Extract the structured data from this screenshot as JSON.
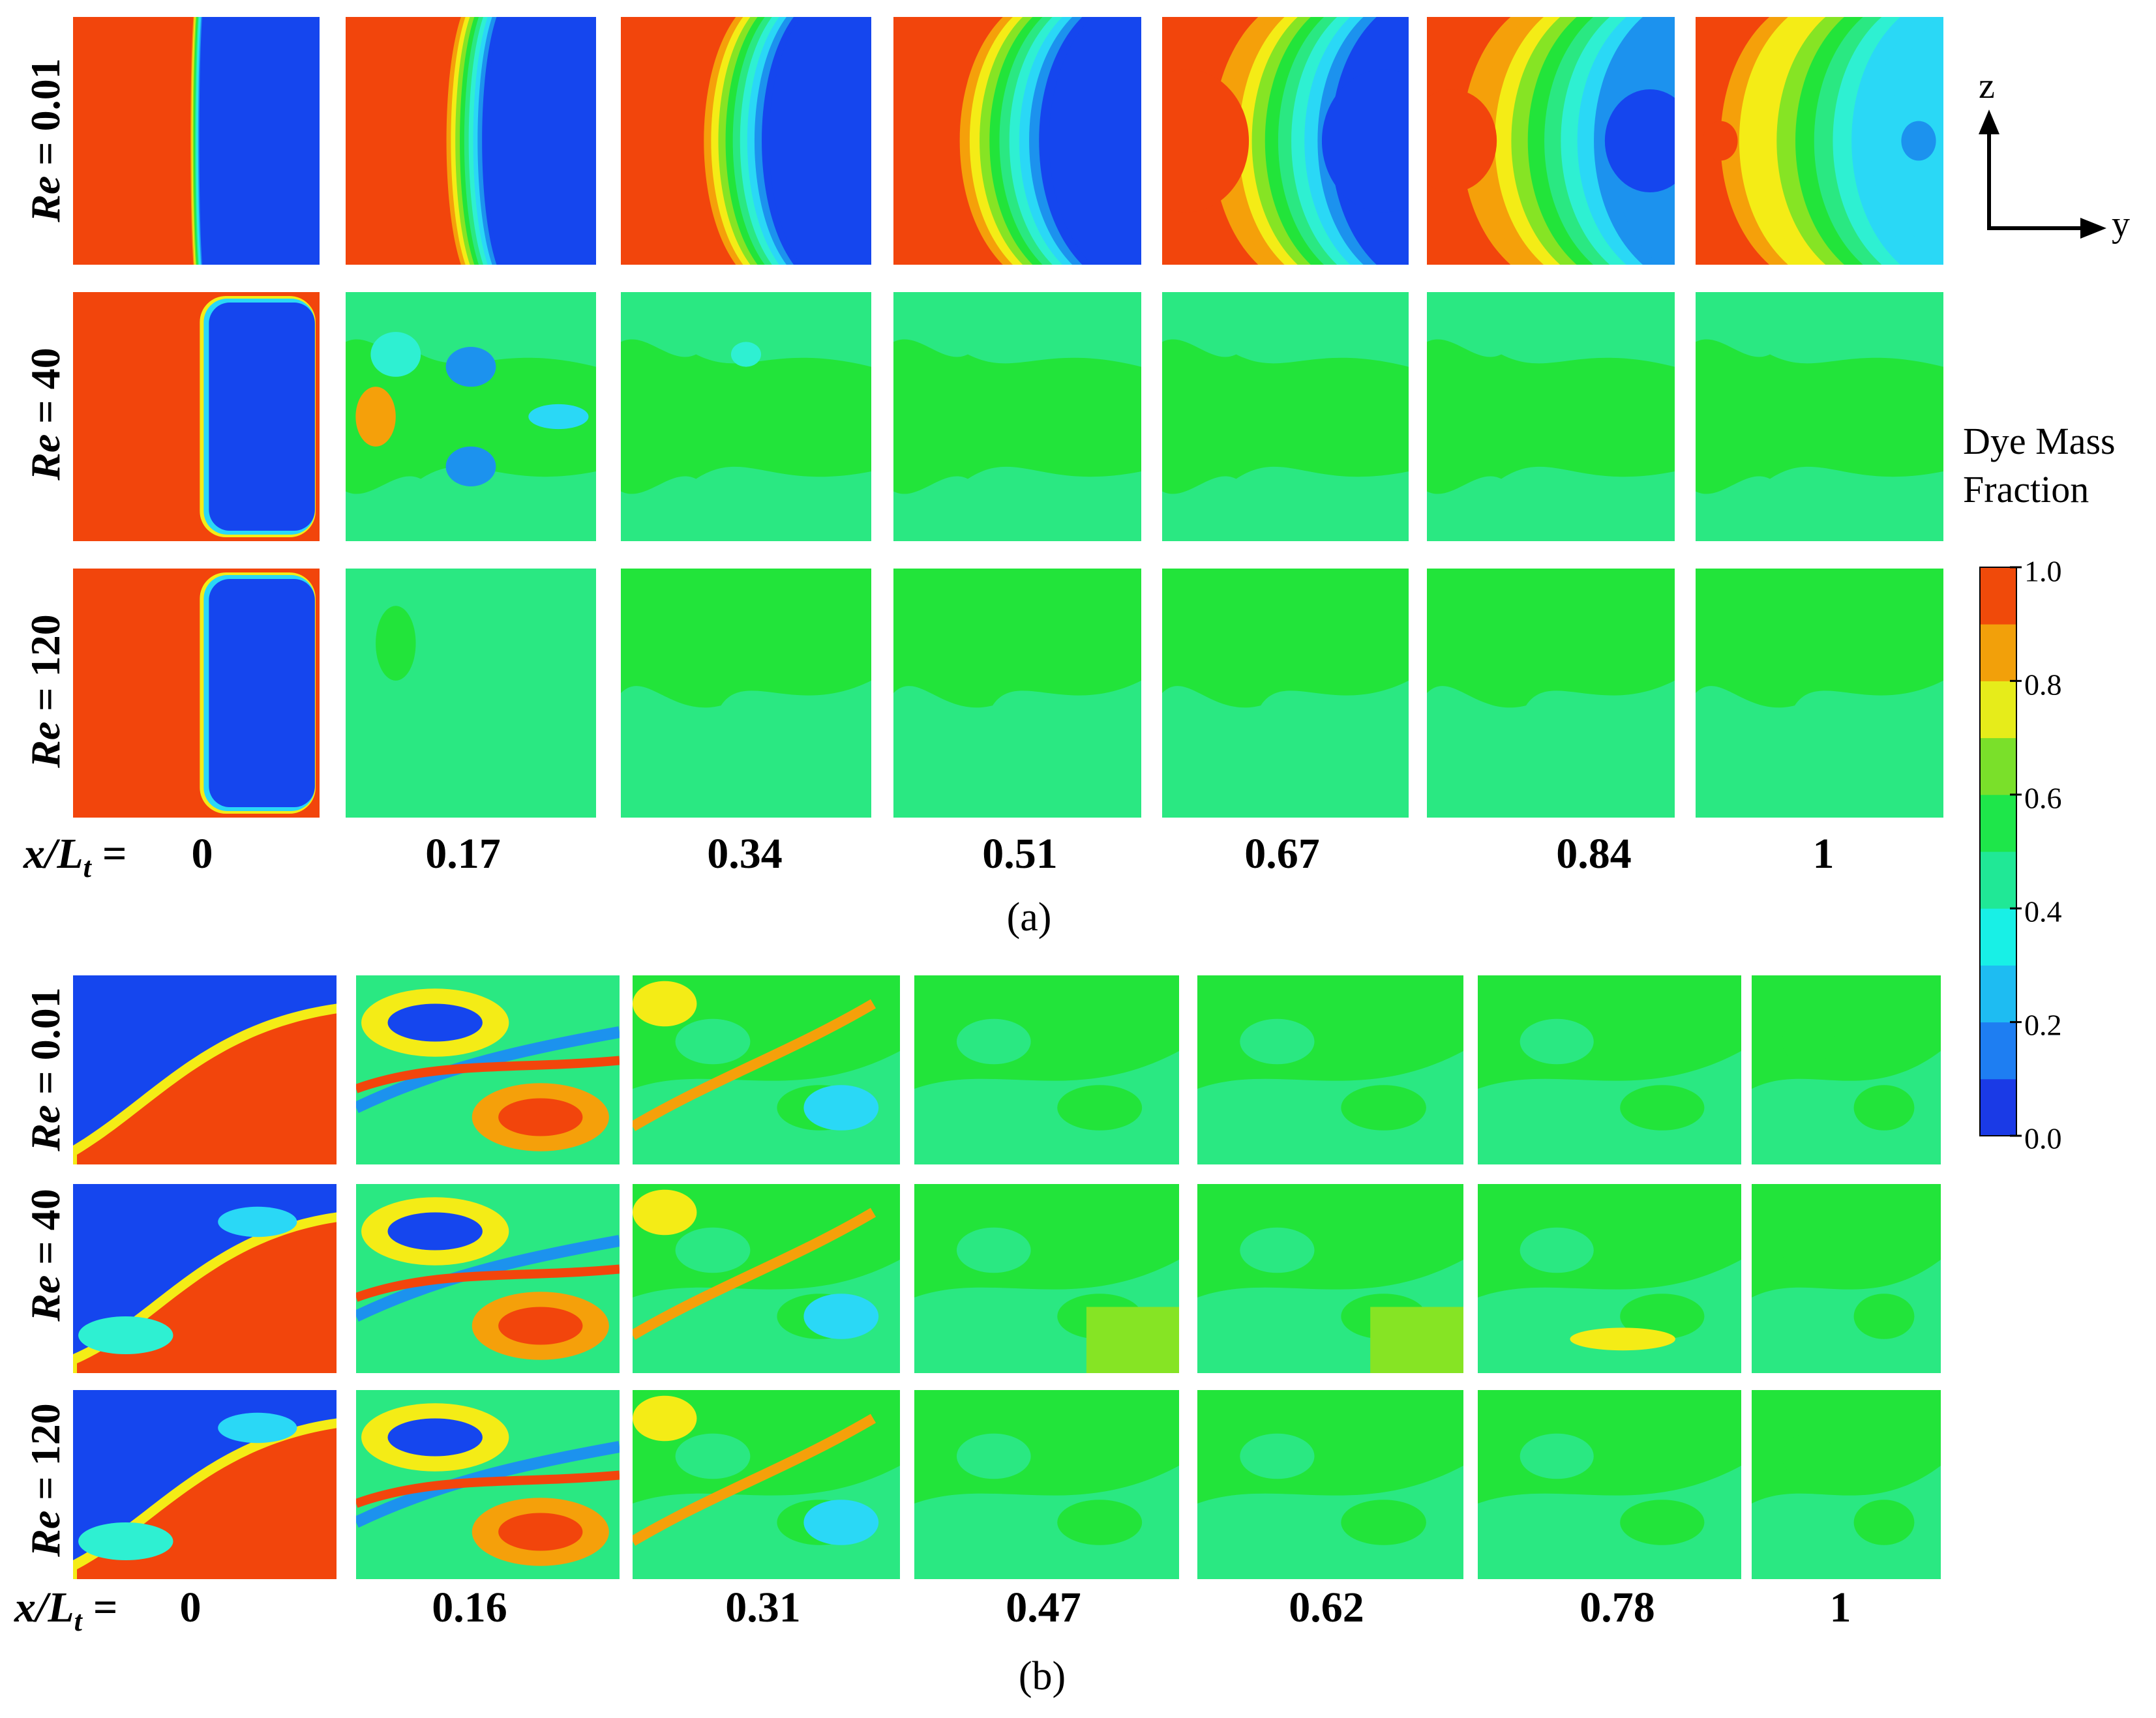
{
  "panel_a": {
    "caption": "(a)",
    "row_labels": [
      {
        "prefix": "Re",
        "value": " = 0.01"
      },
      {
        "prefix": "Re",
        "value": " = 40"
      },
      {
        "prefix": "Re",
        "value": " = 120"
      }
    ],
    "x_prefix": "x/L",
    "x_prefix_sub": "t",
    "x_suffix": " =",
    "x_positions": [
      "0",
      "0.17",
      "0.34",
      "0.51",
      "0.67",
      "0.84",
      "1"
    ]
  },
  "panel_b": {
    "caption": "(b)",
    "row_labels": [
      {
        "prefix": "Re",
        "value": " = 0.01"
      },
      {
        "prefix": "Re",
        "value": " = 40"
      },
      {
        "prefix": "Re",
        "value": " = 120"
      }
    ],
    "x_prefix": "x/L",
    "x_prefix_sub": "t",
    "x_suffix": " =",
    "x_positions": [
      "0",
      "0.16",
      "0.31",
      "0.47",
      "0.62",
      "0.78",
      "1"
    ]
  },
  "colorbar": {
    "title_line1": "Dye Mass",
    "title_line2": "Fraction",
    "ticks": [
      "1.0",
      "0.8",
      "0.6",
      "0.4",
      "0.2",
      "0.0"
    ],
    "range": [
      0.0,
      1.0
    ],
    "colors": [
      "#1a3ae6",
      "#1e7ef2",
      "#1ebcf2",
      "#18f0e6",
      "#20e896",
      "#1ee64a",
      "#7ae02a",
      "#e6ec1a",
      "#f2a00a",
      "#f04a0a"
    ]
  },
  "axes": {
    "vertical": "z",
    "horizontal": "y"
  },
  "legend_colors": {
    "red": "#f2450c",
    "orange": "#f5a00a",
    "yellow": "#f4ec16",
    "lime": "#86e424",
    "green": "#22e43a",
    "mint": "#2ae882",
    "teal": "#2ef0d2",
    "cyan": "#2ad8f6",
    "sky": "#1c92ee",
    "blue": "#1546ee"
  }
}
